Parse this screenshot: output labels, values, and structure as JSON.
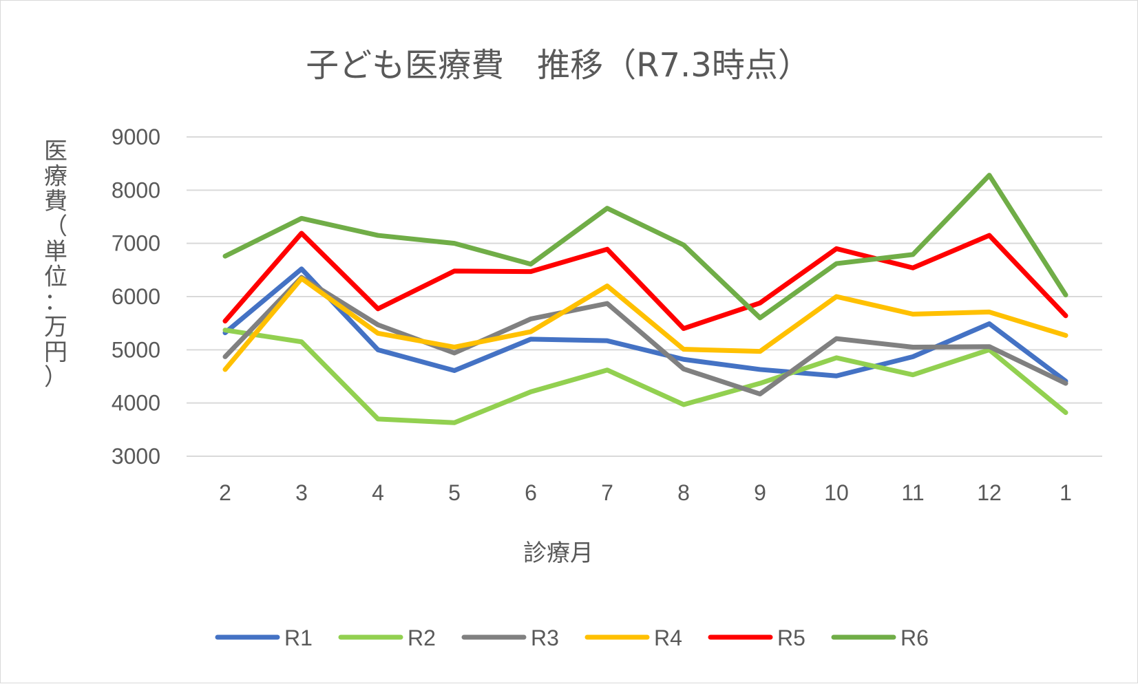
{
  "chart_data": {
    "type": "line",
    "title": "子ども医療費　推移（R7.3時点）",
    "xlabel": "診療月",
    "ylabel": "医療費（単位：万円）",
    "ylim": [
      3000,
      9000
    ],
    "yticks": [
      3000,
      4000,
      5000,
      6000,
      7000,
      8000,
      9000
    ],
    "categories": [
      "2",
      "3",
      "4",
      "5",
      "6",
      "7",
      "8",
      "9",
      "10",
      "11",
      "12",
      "1"
    ],
    "grid": true,
    "legend_position": "bottom",
    "series": [
      {
        "name": "R1",
        "color": "#4472c4",
        "values": [
          5320,
          6520,
          5000,
          4610,
          5200,
          5170,
          4820,
          4630,
          4510,
          4870,
          5490,
          4410
        ]
      },
      {
        "name": "R2",
        "color": "#92d050",
        "values": [
          5370,
          5150,
          3700,
          3630,
          4210,
          4620,
          3970,
          4370,
          4850,
          4530,
          5000,
          3820
        ]
      },
      {
        "name": "R3",
        "color": "#808080",
        "values": [
          4870,
          6360,
          5470,
          4940,
          5580,
          5870,
          4640,
          4170,
          5210,
          5050,
          5060,
          4370
        ]
      },
      {
        "name": "R4",
        "color": "#ffc000",
        "values": [
          4630,
          6340,
          5310,
          5050,
          5340,
          6200,
          5010,
          4970,
          6000,
          5670,
          5710,
          5270
        ]
      },
      {
        "name": "R5",
        "color": "#ff0000",
        "values": [
          5540,
          7190,
          5770,
          6480,
          6470,
          6890,
          5400,
          5880,
          6900,
          6540,
          7150,
          5640
        ]
      },
      {
        "name": "R6",
        "color": "#70ad47",
        "values": [
          6760,
          7470,
          7150,
          7000,
          6610,
          7660,
          6970,
          5600,
          6620,
          6790,
          8280,
          6030
        ]
      }
    ]
  }
}
